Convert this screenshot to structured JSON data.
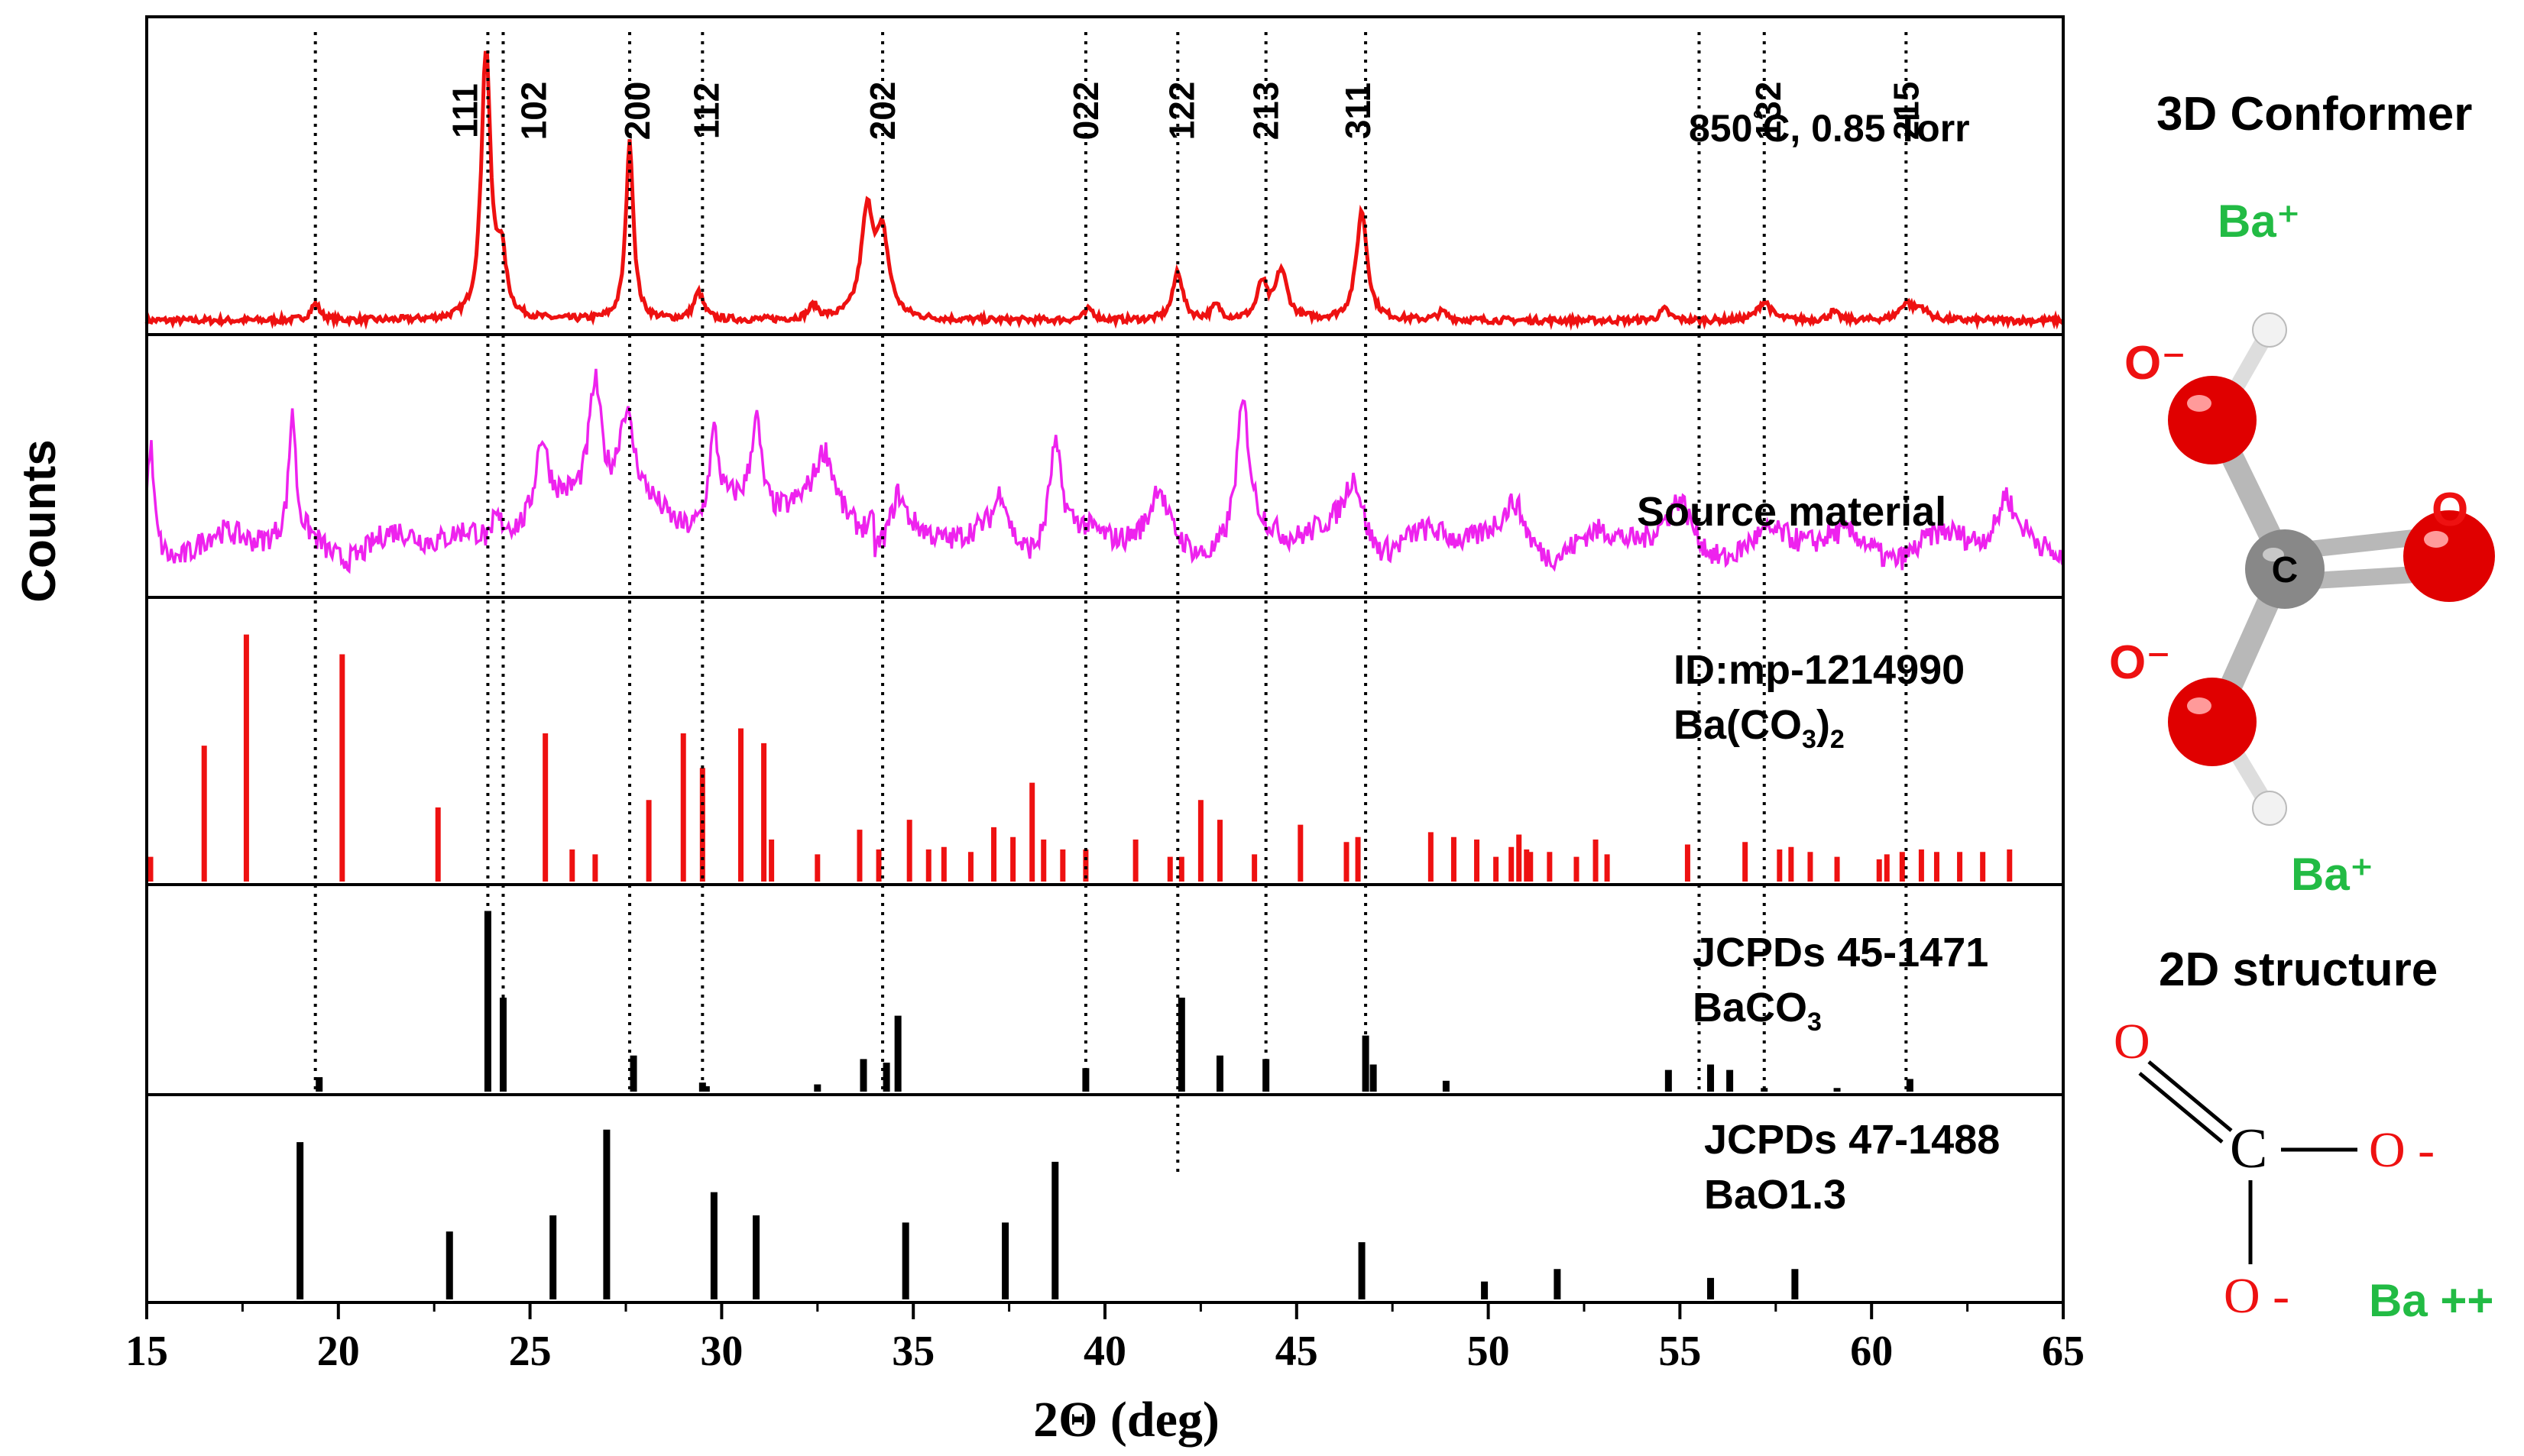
{
  "chart_data": {
    "type": "xrd-stacked",
    "xlabel": "2Θ (deg)",
    "ylabel": "Counts",
    "xlim": [
      15,
      65
    ],
    "xticks": [
      15,
      20,
      25,
      30,
      35,
      40,
      45,
      50,
      55,
      60,
      65
    ],
    "panels": [
      {
        "name": "850C",
        "label_lines": [
          "850°C, 0.85 Torr"
        ],
        "kind": "pattern",
        "color": "#ee1111",
        "baseline": 0.04,
        "peaks": [
          {
            "x": 19.4,
            "h": 0.06,
            "w": 0.15
          },
          {
            "x": 23.85,
            "h": 1.0,
            "w": 0.14
          },
          {
            "x": 24.25,
            "h": 0.22,
            "w": 0.15
          },
          {
            "x": 27.6,
            "h": 0.65,
            "w": 0.12
          },
          {
            "x": 29.4,
            "h": 0.1,
            "w": 0.15
          },
          {
            "x": 32.4,
            "h": 0.05,
            "w": 0.15
          },
          {
            "x": 33.8,
            "h": 0.38,
            "w": 0.2
          },
          {
            "x": 34.2,
            "h": 0.28,
            "w": 0.2
          },
          {
            "x": 39.6,
            "h": 0.04,
            "w": 0.15
          },
          {
            "x": 41.9,
            "h": 0.18,
            "w": 0.15
          },
          {
            "x": 42.9,
            "h": 0.05,
            "w": 0.15
          },
          {
            "x": 44.1,
            "h": 0.13,
            "w": 0.15
          },
          {
            "x": 44.6,
            "h": 0.18,
            "w": 0.18
          },
          {
            "x": 46.7,
            "h": 0.4,
            "w": 0.17
          },
          {
            "x": 48.8,
            "h": 0.03,
            "w": 0.15
          },
          {
            "x": 54.6,
            "h": 0.04,
            "w": 0.15
          },
          {
            "x": 57.2,
            "h": 0.07,
            "w": 0.2
          },
          {
            "x": 59.0,
            "h": 0.03,
            "w": 0.15
          },
          {
            "x": 60.9,
            "h": 0.06,
            "w": 0.2
          },
          {
            "x": 61.3,
            "h": 0.04,
            "w": 0.2
          }
        ],
        "miller": [
          {
            "x": 23.3,
            "text": "111"
          },
          {
            "x": 25.1,
            "text": "102"
          },
          {
            "x": 27.8,
            "text": "200"
          },
          {
            "x": 29.6,
            "text": "112"
          },
          {
            "x": 34.2,
            "text": "202"
          },
          {
            "x": 39.5,
            "text": "022"
          },
          {
            "x": 42.0,
            "text": "122"
          },
          {
            "x": 44.2,
            "text": "213"
          },
          {
            "x": 46.6,
            "text": "311"
          },
          {
            "x": 57.3,
            "text": "132"
          },
          {
            "x": 60.9,
            "text": "215"
          }
        ]
      },
      {
        "name": "source",
        "label_lines": [
          "Source material"
        ],
        "kind": "pattern",
        "color": "#ee22ee",
        "baseline": 0.18,
        "peaks": [
          {
            "x": 15.1,
            "h": 0.45,
            "w": 0.1
          },
          {
            "x": 18.8,
            "h": 0.55,
            "w": 0.1
          },
          {
            "x": 25.3,
            "h": 0.35,
            "w": 0.2
          },
          {
            "x": 26.7,
            "h": 0.55,
            "w": 0.2
          },
          {
            "x": 27.5,
            "h": 0.4,
            "w": 0.25
          },
          {
            "x": 29.8,
            "h": 0.38,
            "w": 0.15
          },
          {
            "x": 30.9,
            "h": 0.4,
            "w": 0.15
          },
          {
            "x": 32.7,
            "h": 0.25,
            "w": 0.3
          },
          {
            "x": 34.6,
            "h": 0.18,
            "w": 0.2
          },
          {
            "x": 37.3,
            "h": 0.2,
            "w": 0.2
          },
          {
            "x": 38.7,
            "h": 0.45,
            "w": 0.2
          },
          {
            "x": 41.4,
            "h": 0.2,
            "w": 0.2
          },
          {
            "x": 43.6,
            "h": 0.58,
            "w": 0.2
          },
          {
            "x": 46.5,
            "h": 0.3,
            "w": 0.3
          },
          {
            "x": 50.7,
            "h": 0.15,
            "w": 0.3
          },
          {
            "x": 55.0,
            "h": 0.15,
            "w": 0.3
          },
          {
            "x": 63.5,
            "h": 0.18,
            "w": 0.2
          }
        ]
      },
      {
        "name": "mp1214990",
        "label_lines": [
          "ID:mp-1214990",
          "Ba(CO3)2"
        ],
        "kind": "sticks",
        "color": "#ee1111",
        "sticks": [
          [
            15.1,
            0.1
          ],
          [
            16.5,
            0.55
          ],
          [
            17.6,
            1.0
          ],
          [
            20.1,
            0.92
          ],
          [
            22.6,
            0.3
          ],
          [
            25.4,
            0.6
          ],
          [
            26.1,
            0.13
          ],
          [
            26.7,
            0.11
          ],
          [
            28.1,
            0.33
          ],
          [
            29.0,
            0.6
          ],
          [
            29.5,
            0.46
          ],
          [
            30.5,
            0.62
          ],
          [
            31.1,
            0.56
          ],
          [
            31.3,
            0.17
          ],
          [
            32.5,
            0.11
          ],
          [
            33.6,
            0.21
          ],
          [
            34.1,
            0.13
          ],
          [
            34.9,
            0.25
          ],
          [
            35.4,
            0.13
          ],
          [
            35.8,
            0.14
          ],
          [
            36.5,
            0.12
          ],
          [
            37.1,
            0.22
          ],
          [
            37.6,
            0.18
          ],
          [
            38.1,
            0.4
          ],
          [
            38.4,
            0.17
          ],
          [
            38.9,
            0.13
          ],
          [
            39.5,
            0.13
          ],
          [
            40.8,
            0.17
          ],
          [
            41.7,
            0.1
          ],
          [
            42.0,
            0.1
          ],
          [
            42.5,
            0.33
          ],
          [
            43.0,
            0.25
          ],
          [
            43.9,
            0.11
          ],
          [
            45.1,
            0.23
          ],
          [
            46.3,
            0.16
          ],
          [
            46.6,
            0.18
          ],
          [
            48.5,
            0.2
          ],
          [
            49.1,
            0.18
          ],
          [
            49.7,
            0.17
          ],
          [
            50.2,
            0.1
          ],
          [
            50.6,
            0.14
          ],
          [
            50.8,
            0.19
          ],
          [
            51.0,
            0.13
          ],
          [
            51.1,
            0.12
          ],
          [
            51.6,
            0.12
          ],
          [
            52.3,
            0.1
          ],
          [
            52.8,
            0.17
          ],
          [
            53.1,
            0.11
          ],
          [
            55.2,
            0.15
          ],
          [
            56.7,
            0.16
          ],
          [
            57.6,
            0.13
          ],
          [
            57.9,
            0.14
          ],
          [
            58.4,
            0.12
          ],
          [
            59.1,
            0.1
          ],
          [
            60.2,
            0.09
          ],
          [
            60.4,
            0.11
          ],
          [
            60.8,
            0.12
          ],
          [
            61.3,
            0.13
          ],
          [
            61.7,
            0.12
          ],
          [
            62.3,
            0.12
          ],
          [
            62.9,
            0.12
          ],
          [
            63.6,
            0.13
          ]
        ]
      },
      {
        "name": "jcpds45-1471",
        "label_lines": [
          "JCPDs 45-1471",
          "BaCO3"
        ],
        "kind": "sticks",
        "color": "#000000",
        "sticks": [
          [
            19.5,
            0.08
          ],
          [
            23.9,
            1.0
          ],
          [
            24.3,
            0.52
          ],
          [
            27.7,
            0.2
          ],
          [
            29.5,
            0.05
          ],
          [
            29.6,
            0.03
          ],
          [
            32.5,
            0.04
          ],
          [
            33.7,
            0.18
          ],
          [
            34.3,
            0.16
          ],
          [
            34.6,
            0.42
          ],
          [
            39.5,
            0.13
          ],
          [
            42.0,
            0.52
          ],
          [
            43.0,
            0.2
          ],
          [
            44.2,
            0.18
          ],
          [
            46.8,
            0.31
          ],
          [
            47.0,
            0.15
          ],
          [
            48.9,
            0.06
          ],
          [
            54.7,
            0.12
          ],
          [
            55.8,
            0.15
          ],
          [
            56.3,
            0.12
          ],
          [
            57.2,
            0.02
          ],
          [
            59.1,
            0.02
          ],
          [
            61.0,
            0.07
          ]
        ]
      },
      {
        "name": "jcpds47-1488",
        "label_lines": [
          "JCPDs 47-1488",
          "BaO1.3"
        ],
        "kind": "sticks",
        "color": "#000000",
        "sticks": [
          [
            19.0,
            0.88
          ],
          [
            22.9,
            0.38
          ],
          [
            25.6,
            0.47
          ],
          [
            27.0,
            0.95
          ],
          [
            29.8,
            0.6
          ],
          [
            30.9,
            0.47
          ],
          [
            34.8,
            0.43
          ],
          [
            37.4,
            0.43
          ],
          [
            38.7,
            0.77
          ],
          [
            46.7,
            0.32
          ],
          [
            49.9,
            0.1
          ],
          [
            51.8,
            0.17
          ],
          [
            55.8,
            0.12
          ],
          [
            58.0,
            0.17
          ]
        ]
      }
    ],
    "reference_lines": [
      {
        "x": 19.4,
        "from": 0,
        "to": 3
      },
      {
        "x": 23.9,
        "from": 0,
        "to": 3
      },
      {
        "x": 24.3,
        "from": 0,
        "to": 3
      },
      {
        "x": 27.6,
        "from": 0,
        "to": 3
      },
      {
        "x": 29.5,
        "from": 0,
        "to": 3
      },
      {
        "x": 34.2,
        "from": 0,
        "to": 3
      },
      {
        "x": 39.5,
        "from": 0,
        "to": 3
      },
      {
        "x": 41.9,
        "from": 0,
        "to": 4
      },
      {
        "x": 44.2,
        "from": 0,
        "to": 3
      },
      {
        "x": 46.8,
        "from": 0,
        "to": 3
      },
      {
        "x": 55.5,
        "from": 0,
        "to": 3
      },
      {
        "x": 57.2,
        "from": 0,
        "to": 3
      },
      {
        "x": 60.9,
        "from": 0,
        "to": 3
      }
    ]
  },
  "side_panel": {
    "conformer_title": "3D Conformer",
    "structure_title": "2D structure",
    "ba_plus_top": "Ba⁺",
    "ba_plus_bottom": "Ba⁺",
    "o_minus_1": "O⁻",
    "o_minus_2": "O⁻",
    "o_double": "O",
    "carbon": "C",
    "s2d_o_top": "O",
    "s2d_c": "C",
    "s2d_o_right": "O -",
    "s2d_o_bottom": "O -",
    "s2d_ba": "Ba ++",
    "colors": {
      "green": "#22bb44",
      "red": "#ee1111",
      "oxygen": "#e00000",
      "carbon": "#888888",
      "hydrogen": "#eeeeee"
    }
  }
}
